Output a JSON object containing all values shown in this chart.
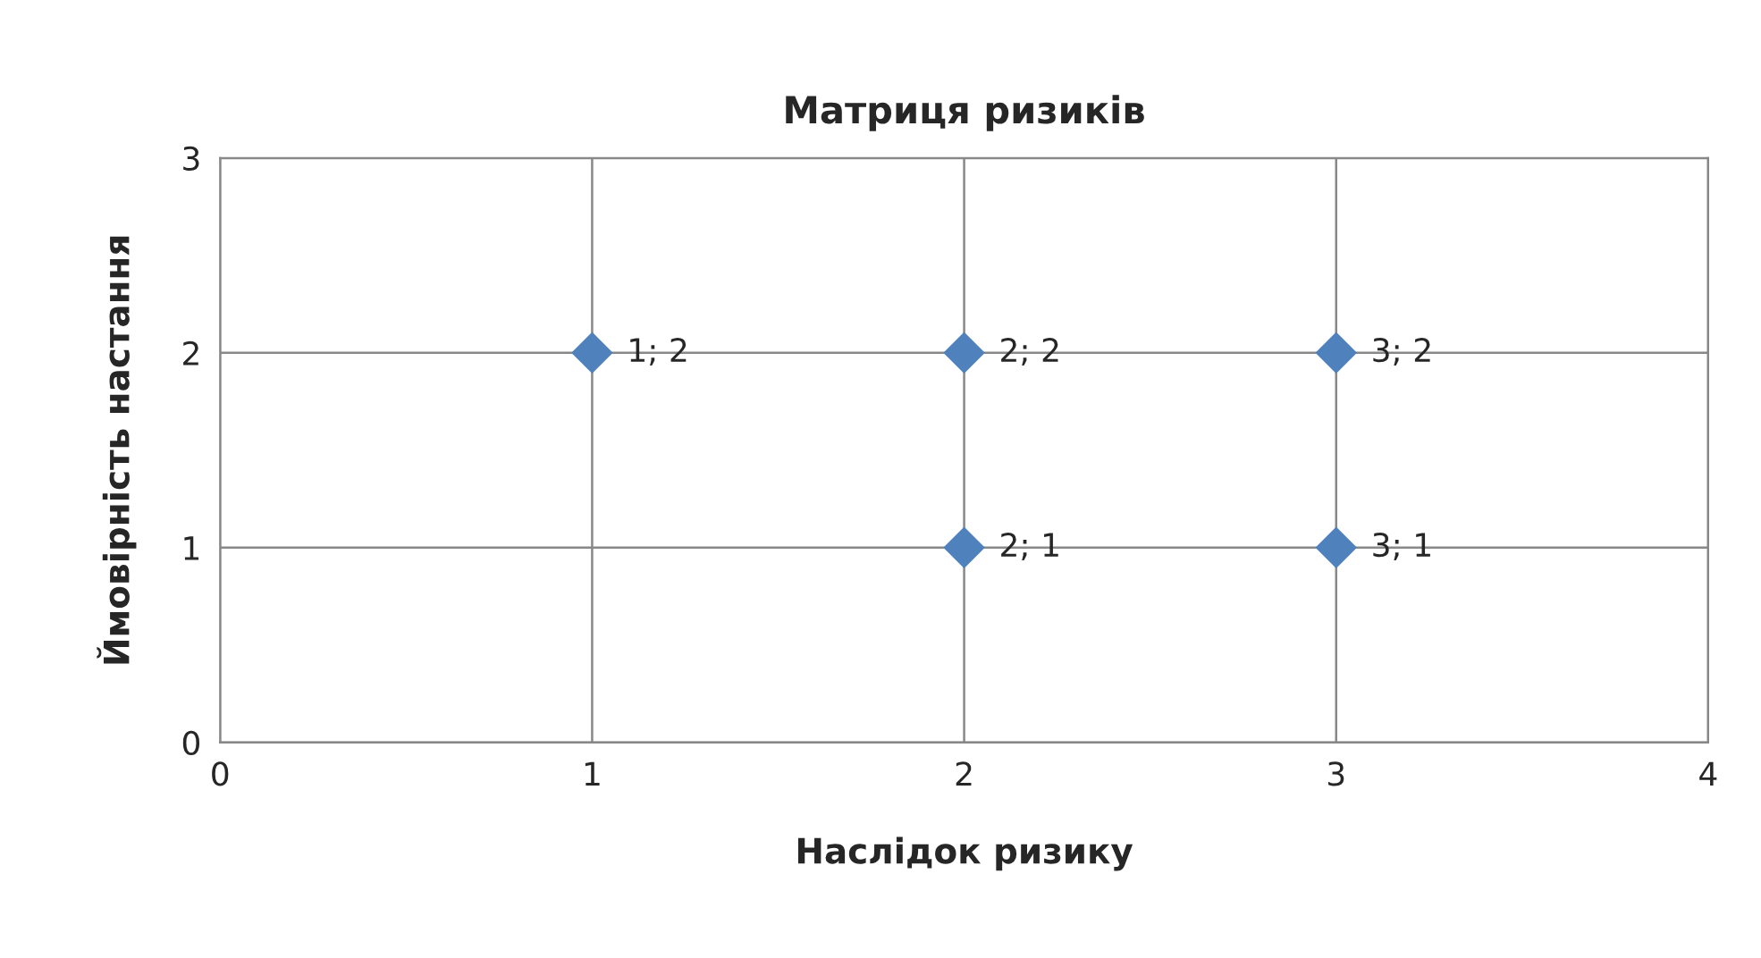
{
  "chart_data": {
    "type": "scatter",
    "title": "Матриця ризиків",
    "xlabel": "Наслідок ризику",
    "ylabel": "Ймовірність настання",
    "x": [
      1,
      2,
      3,
      2,
      3
    ],
    "series": [
      {
        "color": "#4f81bd",
        "values": [
          2,
          2,
          2,
          1,
          1
        ],
        "value_labels": [
          "1; 2",
          "2; 2",
          "3; 2",
          "2; 1",
          "3; 1"
        ]
      }
    ],
    "xlim": [
      0,
      4
    ],
    "ylim": [
      0,
      3
    ],
    "xticks": [
      0,
      1,
      2,
      3,
      4
    ],
    "yticks": [
      0,
      1,
      2,
      3
    ],
    "grid": true,
    "marker": "diamond"
  }
}
